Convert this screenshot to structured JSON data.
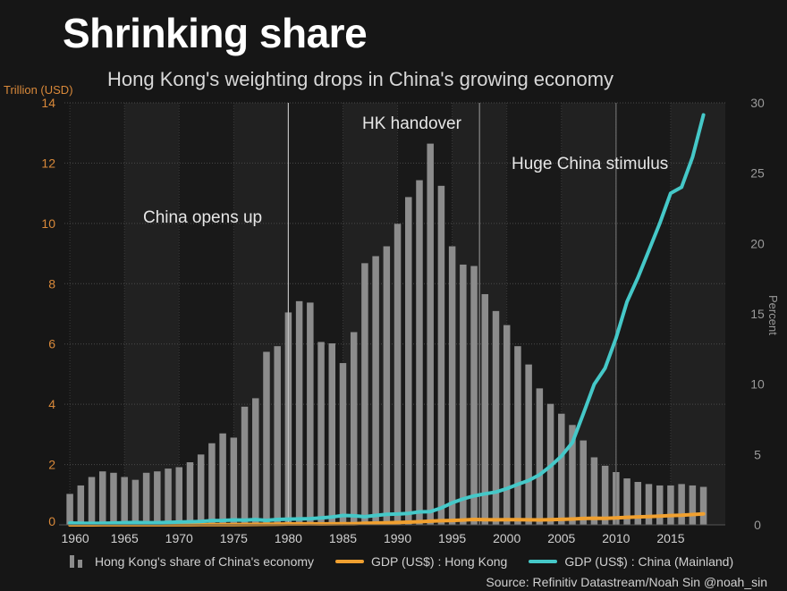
{
  "header": {
    "title": "Shrinking share",
    "subtitle": "Hong Kong's weighting drops in China's growing economy"
  },
  "source": "Source: Refinitiv Datastream/Noah Sin @noah_sin",
  "colors": {
    "background": "#161616",
    "band_light": "#212121",
    "band_dark": "#191919",
    "bars": "#8c8c8c",
    "hk_line": "#f0a030",
    "china_line": "#45c8c8",
    "left_axis": "#d9893a",
    "right_axis": "#9a9a9a"
  },
  "chart_data": {
    "type": "bar+line",
    "title": "Shrinking share",
    "subtitle": "Hong Kong's weighting drops in China's growing economy",
    "x": [
      1960,
      1961,
      1962,
      1963,
      1964,
      1965,
      1966,
      1967,
      1968,
      1969,
      1970,
      1971,
      1972,
      1973,
      1974,
      1975,
      1976,
      1977,
      1978,
      1979,
      1980,
      1981,
      1982,
      1983,
      1984,
      1985,
      1986,
      1987,
      1988,
      1989,
      1990,
      1991,
      1992,
      1993,
      1994,
      1995,
      1996,
      1997,
      1998,
      1999,
      2000,
      2001,
      2002,
      2003,
      2004,
      2005,
      2006,
      2007,
      2008,
      2009,
      2010,
      2011,
      2012,
      2013,
      2014,
      2015,
      2016,
      2017,
      2018
    ],
    "xticks": [
      "1960",
      "1965",
      "1970",
      "1975",
      "1980",
      "1985",
      "1990",
      "1995",
      "2000",
      "2005",
      "2010",
      "2015"
    ],
    "y_left": {
      "label": "Trillion (USD)",
      "range": [
        0,
        14
      ],
      "ticks": [
        "0",
        "2",
        "4",
        "6",
        "8",
        "10",
        "12",
        "14"
      ]
    },
    "y_right": {
      "label": "Percent",
      "range": [
        0,
        30
      ],
      "ticks": [
        "0",
        "5",
        "10",
        "15",
        "20",
        "25",
        "30"
      ]
    },
    "grid": true,
    "legend_position": "bottom",
    "series": [
      {
        "name": "Hong Kong's share of China's economy",
        "type": "bar",
        "axis": "right",
        "values": [
          2.2,
          2.8,
          3.4,
          3.8,
          3.7,
          3.4,
          3.2,
          3.7,
          3.8,
          4.0,
          4.1,
          4.45,
          5.0,
          5.8,
          6.5,
          6.2,
          8.4,
          9.0,
          12.3,
          12.7,
          15.1,
          15.9,
          15.8,
          13.0,
          12.9,
          11.5,
          13.7,
          18.6,
          19.1,
          19.8,
          21.4,
          23.3,
          24.5,
          27.1,
          24.1,
          19.8,
          18.5,
          18.4,
          16.4,
          15.2,
          14.2,
          12.7,
          11.4,
          9.7,
          8.6,
          7.9,
          7.1,
          6.0,
          4.8,
          4.2,
          3.75,
          3.3,
          3.05,
          2.9,
          2.8,
          2.8,
          2.9,
          2.8,
          2.7
        ]
      },
      {
        "name": "GDP (US$) : Hong Kong",
        "type": "line",
        "axis": "left",
        "values": [
          0.001,
          0.001,
          0.001,
          0.002,
          0.002,
          0.002,
          0.002,
          0.002,
          0.002,
          0.003,
          0.004,
          0.004,
          0.005,
          0.007,
          0.008,
          0.01,
          0.013,
          0.015,
          0.019,
          0.022,
          0.029,
          0.031,
          0.033,
          0.03,
          0.034,
          0.035,
          0.04,
          0.05,
          0.059,
          0.069,
          0.077,
          0.088,
          0.104,
          0.121,
          0.135,
          0.145,
          0.16,
          0.178,
          0.17,
          0.166,
          0.172,
          0.17,
          0.166,
          0.162,
          0.17,
          0.18,
          0.193,
          0.212,
          0.22,
          0.214,
          0.229,
          0.249,
          0.263,
          0.276,
          0.291,
          0.309,
          0.321,
          0.341,
          0.363
        ]
      },
      {
        "name": "GDP (US$) : China (Mainland)",
        "type": "line",
        "axis": "left",
        "values": [
          0.06,
          0.05,
          0.047,
          0.05,
          0.059,
          0.07,
          0.076,
          0.072,
          0.07,
          0.079,
          0.093,
          0.1,
          0.114,
          0.139,
          0.144,
          0.163,
          0.154,
          0.175,
          0.149,
          0.178,
          0.191,
          0.196,
          0.205,
          0.23,
          0.26,
          0.31,
          0.3,
          0.27,
          0.31,
          0.35,
          0.36,
          0.38,
          0.43,
          0.44,
          0.56,
          0.73,
          0.86,
          0.96,
          1.03,
          1.09,
          1.2,
          1.34,
          1.47,
          1.66,
          1.95,
          2.28,
          2.73,
          3.68,
          4.66,
          5.2,
          6.2,
          7.4,
          8.2,
          9.1,
          10.0,
          11.0,
          11.2,
          12.2,
          13.6
        ]
      }
    ],
    "annotations": [
      {
        "text": "China opens up",
        "x": 1980
      },
      {
        "text": "HK handover",
        "x": 1997.5
      },
      {
        "text": "Huge China stimulus",
        "x": 2010
      }
    ]
  },
  "legend": {
    "bars": "Hong Kong's share of China's economy",
    "hk": "GDP (US$) : Hong Kong",
    "china": "GDP (US$) : China (Mainland)"
  }
}
